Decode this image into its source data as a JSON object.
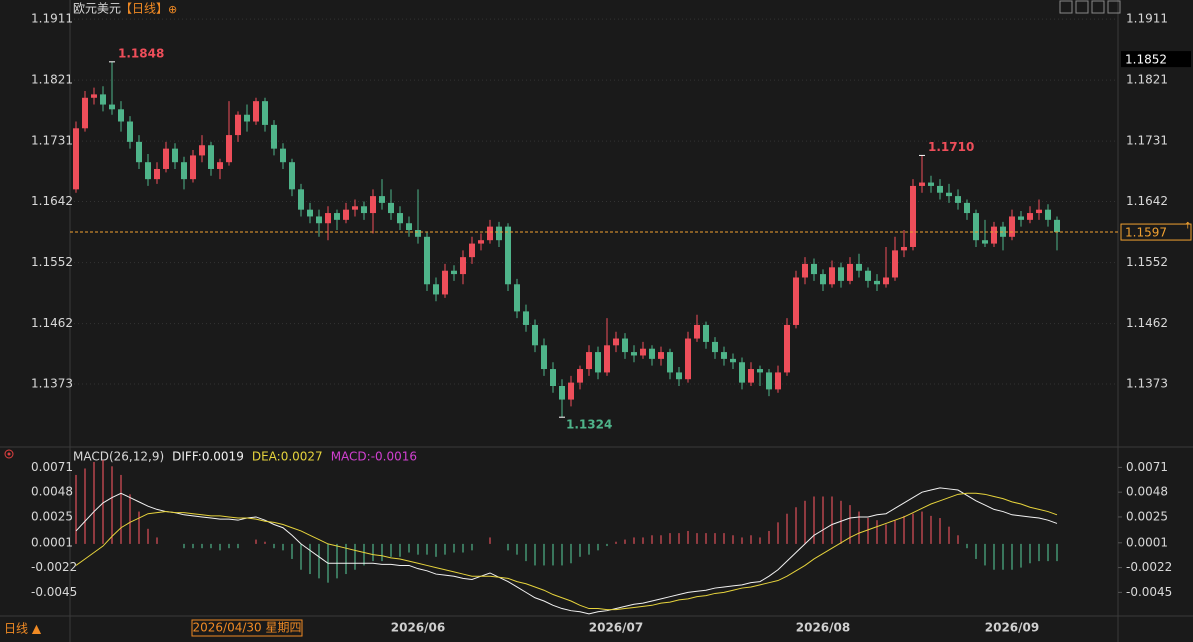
{
  "header": {
    "symbol": "欧元美元",
    "period": "【日线】",
    "period_icon": "⊕",
    "footer_period": "日线 ▲"
  },
  "chart_data": [
    {
      "type": "candlestick",
      "categories": [
        null,
        null,
        null,
        null,
        null,
        null,
        null,
        null,
        null,
        null,
        null,
        null,
        null,
        null,
        null,
        null,
        null,
        null,
        null,
        null,
        null,
        null,
        null,
        null,
        null,
        null,
        null,
        null,
        null,
        null,
        null,
        null,
        null,
        null,
        null,
        null,
        null,
        null,
        "2026/06",
        null,
        null,
        null,
        null,
        null,
        null,
        null,
        null,
        null,
        null,
        null,
        null,
        null,
        null,
        null,
        null,
        null,
        null,
        null,
        null,
        null,
        "2026/07",
        null,
        null,
        null,
        null,
        null,
        null,
        null,
        null,
        null,
        null,
        null,
        null,
        null,
        null,
        null,
        null,
        null,
        null,
        null,
        null,
        null,
        null,
        "2026/08",
        null,
        null,
        null,
        null,
        null,
        null,
        null,
        null,
        null,
        null,
        null,
        null,
        null,
        null,
        null,
        null,
        null,
        null,
        null,
        null,
        "2026/09",
        null,
        null,
        null,
        null,
        null
      ],
      "ohlc": [
        [
          1.166,
          1.176,
          1.1655,
          1.175
        ],
        [
          1.175,
          1.1805,
          1.1745,
          1.1795
        ],
        [
          1.1795,
          1.181,
          1.1785,
          1.18
        ],
        [
          1.18,
          1.1812,
          1.1775,
          1.1785
        ],
        [
          1.1785,
          1.1848,
          1.177,
          1.1778
        ],
        [
          1.1778,
          1.179,
          1.1745,
          1.176
        ],
        [
          1.176,
          1.1768,
          1.172,
          1.173
        ],
        [
          1.173,
          1.174,
          1.169,
          1.17
        ],
        [
          1.17,
          1.1712,
          1.1665,
          1.1675
        ],
        [
          1.1675,
          1.17,
          1.1668,
          1.169
        ],
        [
          1.169,
          1.173,
          1.1685,
          1.172
        ],
        [
          1.172,
          1.1728,
          1.169,
          1.17
        ],
        [
          1.17,
          1.1708,
          1.166,
          1.1675
        ],
        [
          1.1675,
          1.1718,
          1.167,
          1.171
        ],
        [
          1.171,
          1.174,
          1.17,
          1.1725
        ],
        [
          1.1725,
          1.173,
          1.168,
          1.169
        ],
        [
          1.169,
          1.1705,
          1.1675,
          1.17
        ],
        [
          1.17,
          1.179,
          1.1695,
          1.174
        ],
        [
          1.174,
          1.1775,
          1.173,
          1.177
        ],
        [
          1.177,
          1.1785,
          1.1745,
          1.176
        ],
        [
          1.176,
          1.1795,
          1.1755,
          1.179
        ],
        [
          1.179,
          1.1795,
          1.1745,
          1.1755
        ],
        [
          1.1755,
          1.1762,
          1.171,
          1.172
        ],
        [
          1.172,
          1.1728,
          1.169,
          1.17
        ],
        [
          1.17,
          1.1705,
          1.165,
          1.166
        ],
        [
          1.166,
          1.1668,
          1.162,
          1.163
        ],
        [
          1.163,
          1.164,
          1.161,
          1.162
        ],
        [
          1.162,
          1.163,
          1.159,
          1.161
        ],
        [
          1.161,
          1.1635,
          1.1585,
          1.1625
        ],
        [
          1.1625,
          1.163,
          1.16,
          1.1615
        ],
        [
          1.1615,
          1.164,
          1.161,
          1.163
        ],
        [
          1.163,
          1.1645,
          1.162,
          1.1635
        ],
        [
          1.1635,
          1.1642,
          1.1615,
          1.1625
        ],
        [
          1.1625,
          1.166,
          1.1595,
          1.165
        ],
        [
          1.165,
          1.1675,
          1.163,
          1.164
        ],
        [
          1.164,
          1.166,
          1.1615,
          1.1625
        ],
        [
          1.1625,
          1.1635,
          1.16,
          1.161
        ],
        [
          1.161,
          1.162,
          1.159,
          1.16
        ],
        [
          1.16,
          1.166,
          1.158,
          1.159
        ],
        [
          1.159,
          1.1598,
          1.151,
          1.152
        ],
        [
          1.152,
          1.153,
          1.1495,
          1.1505
        ],
        [
          1.1505,
          1.155,
          1.15,
          1.154
        ],
        [
          1.154,
          1.1548,
          1.1525,
          1.1535
        ],
        [
          1.1535,
          1.157,
          1.152,
          1.156
        ],
        [
          1.156,
          1.159,
          1.155,
          1.158
        ],
        [
          1.158,
          1.1595,
          1.157,
          1.1585
        ],
        [
          1.1585,
          1.1615,
          1.158,
          1.1605
        ],
        [
          1.1605,
          1.1612,
          1.1575,
          1.1585
        ],
        [
          1.1605,
          1.161,
          1.151,
          1.152
        ],
        [
          1.152,
          1.1528,
          1.147,
          1.148
        ],
        [
          1.148,
          1.149,
          1.145,
          1.146
        ],
        [
          1.146,
          1.1468,
          1.142,
          1.143
        ],
        [
          1.143,
          1.144,
          1.1385,
          1.1395
        ],
        [
          1.1395,
          1.1405,
          1.136,
          1.137
        ],
        [
          1.137,
          1.138,
          1.1324,
          1.135
        ],
        [
          1.135,
          1.1385,
          1.134,
          1.1375
        ],
        [
          1.1375,
          1.14,
          1.1365,
          1.1395
        ],
        [
          1.1395,
          1.143,
          1.1385,
          1.142
        ],
        [
          1.142,
          1.1428,
          1.138,
          1.139
        ],
        [
          1.139,
          1.147,
          1.1385,
          1.143
        ],
        [
          1.143,
          1.145,
          1.142,
          1.144
        ],
        [
          1.144,
          1.1448,
          1.141,
          1.142
        ],
        [
          1.142,
          1.143,
          1.1405,
          1.1415
        ],
        [
          1.1415,
          1.1435,
          1.141,
          1.1425
        ],
        [
          1.1425,
          1.143,
          1.14,
          1.141
        ],
        [
          1.141,
          1.1428,
          1.14,
          1.142
        ],
        [
          1.142,
          1.1425,
          1.138,
          1.139
        ],
        [
          1.139,
          1.1398,
          1.137,
          1.138
        ],
        [
          1.138,
          1.145,
          1.1375,
          1.144
        ],
        [
          1.144,
          1.1475,
          1.1435,
          1.146
        ],
        [
          1.146,
          1.1465,
          1.1425,
          1.1435
        ],
        [
          1.1435,
          1.1442,
          1.141,
          1.142
        ],
        [
          1.142,
          1.1428,
          1.14,
          1.141
        ],
        [
          1.141,
          1.1418,
          1.1395,
          1.1405
        ],
        [
          1.1405,
          1.1412,
          1.1365,
          1.1375
        ],
        [
          1.1375,
          1.1405,
          1.137,
          1.1395
        ],
        [
          1.1395,
          1.14,
          1.137,
          1.139
        ],
        [
          1.139,
          1.1395,
          1.1355,
          1.1365
        ],
        [
          1.1365,
          1.14,
          1.136,
          1.139
        ],
        [
          1.139,
          1.147,
          1.1385,
          1.146
        ],
        [
          1.146,
          1.154,
          1.1455,
          1.153
        ],
        [
          1.153,
          1.156,
          1.152,
          1.155
        ],
        [
          1.155,
          1.1558,
          1.1525,
          1.1535
        ],
        [
          1.1535,
          1.1542,
          1.151,
          1.152
        ],
        [
          1.152,
          1.1555,
          1.1515,
          1.1545
        ],
        [
          1.1545,
          1.1552,
          1.1515,
          1.1525
        ],
        [
          1.1525,
          1.156,
          1.152,
          1.155
        ],
        [
          1.155,
          1.1565,
          1.153,
          1.154
        ],
        [
          1.154,
          1.1545,
          1.1515,
          1.1525
        ],
        [
          1.1525,
          1.1535,
          1.151,
          1.152
        ],
        [
          1.152,
          1.1575,
          1.1515,
          1.153
        ],
        [
          1.153,
          1.159,
          1.1525,
          1.157
        ],
        [
          1.157,
          1.16,
          1.156,
          1.1575
        ],
        [
          1.1575,
          1.1675,
          1.157,
          1.1665
        ],
        [
          1.1665,
          1.171,
          1.1655,
          1.167
        ],
        [
          1.167,
          1.168,
          1.1655,
          1.1665
        ],
        [
          1.1665,
          1.1675,
          1.1645,
          1.1655
        ],
        [
          1.1655,
          1.1668,
          1.164,
          1.165
        ],
        [
          1.165,
          1.166,
          1.163,
          1.164
        ],
        [
          1.164,
          1.1645,
          1.1615,
          1.1625
        ],
        [
          1.1625,
          1.163,
          1.1575,
          1.1585
        ],
        [
          1.1585,
          1.1615,
          1.1575,
          1.158
        ],
        [
          1.158,
          1.1612,
          1.1575,
          1.1605
        ],
        [
          1.1605,
          1.1612,
          1.157,
          1.159
        ],
        [
          1.159,
          1.163,
          1.1585,
          1.162
        ],
        [
          1.162,
          1.1628,
          1.1605,
          1.1615
        ],
        [
          1.1615,
          1.1635,
          1.161,
          1.1625
        ],
        [
          1.1625,
          1.1645,
          1.1615,
          1.163
        ],
        [
          1.163,
          1.1638,
          1.1605,
          1.1615
        ],
        [
          1.1615,
          1.162,
          1.157,
          1.1597
        ]
      ],
      "up_color": "#ee4e5a",
      "down_color": "#4fb48a",
      "ylim": [
        1.1283,
        1.192
      ],
      "yticks": [
        1.1911,
        1.1821,
        1.1731,
        1.1642,
        1.1552,
        1.1462,
        1.1373
      ],
      "grid": true,
      "last_price": 1.1597,
      "last_price_color": "#f0a030",
      "cursor_price": 1.1852,
      "cursor_date_label": "2026/04/30 星期四",
      "high_annotations": [
        "1.1848",
        "1.1710"
      ],
      "low_annotations": [
        "1.1324"
      ]
    },
    {
      "type": "macd",
      "title": "MACD(26,12,9)",
      "series": [
        {
          "label": "DIFF:0.0019",
          "color": "#f2f2f2",
          "values": [
            0.0012,
            0.0021,
            0.003,
            0.0038,
            0.0043,
            0.0047,
            0.0043,
            0.0039,
            0.0035,
            0.0032,
            0.003,
            0.0029,
            0.0027,
            0.0026,
            0.0025,
            0.0024,
            0.0023,
            0.0023,
            0.0022,
            0.0024,
            0.0025,
            0.0022,
            0.0018,
            0.0015,
            0.0008,
            0.0,
            -0.0006,
            -0.0012,
            -0.0018,
            -0.0018,
            -0.0018,
            -0.0018,
            -0.0018,
            -0.0018,
            -0.0019,
            -0.0019,
            -0.002,
            -0.002,
            -0.0023,
            -0.0025,
            -0.0028,
            -0.0029,
            -0.003,
            -0.0032,
            -0.0033,
            -0.003,
            -0.0027,
            -0.0031,
            -0.0035,
            -0.004,
            -0.0045,
            -0.005,
            -0.0053,
            -0.0057,
            -0.006,
            -0.0062,
            -0.0063,
            -0.0065,
            -0.0063,
            -0.0062,
            -0.006,
            -0.0058,
            -0.0056,
            -0.0055,
            -0.0053,
            -0.0051,
            -0.0049,
            -0.0047,
            -0.0045,
            -0.0044,
            -0.0043,
            -0.0041,
            -0.004,
            -0.0039,
            -0.0038,
            -0.0036,
            -0.0035,
            -0.003,
            -0.0024,
            -0.0016,
            -0.0008,
            0.0,
            0.0008,
            0.0013,
            0.0018,
            0.0021,
            0.0024,
            0.0025,
            0.0025,
            0.0027,
            0.0028,
            0.0033,
            0.0038,
            0.0043,
            0.0048,
            0.005,
            0.0052,
            0.0051,
            0.005,
            0.0045,
            0.004,
            0.0036,
            0.0032,
            0.003,
            0.0027,
            0.0026,
            0.0025,
            0.0024,
            0.0022,
            0.0019
          ]
        },
        {
          "label": "DEA:0.0027",
          "color": "#e6d33c",
          "values": [
            -0.002,
            -0.0014,
            -0.0008,
            -0.0002,
            0.0007,
            0.0015,
            0.002,
            0.0024,
            0.0028,
            0.0029,
            0.003,
            0.0029,
            0.0029,
            0.0028,
            0.0027,
            0.0026,
            0.0026,
            0.0025,
            0.0024,
            0.0024,
            0.0023,
            0.0021,
            0.002,
            0.0018,
            0.0015,
            0.0012,
            0.0008,
            0.0004,
            0.0,
            -0.0002,
            -0.0004,
            -0.0006,
            -0.0008,
            -0.001,
            -0.0011,
            -0.0013,
            -0.0014,
            -0.0016,
            -0.0018,
            -0.002,
            -0.0022,
            -0.0024,
            -0.0026,
            -0.0028,
            -0.003,
            -0.003,
            -0.003,
            -0.0031,
            -0.0032,
            -0.0035,
            -0.0037,
            -0.004,
            -0.0043,
            -0.0047,
            -0.005,
            -0.0053,
            -0.0057,
            -0.006,
            -0.006,
            -0.0061,
            -0.0061,
            -0.006,
            -0.0059,
            -0.0058,
            -0.0057,
            -0.0055,
            -0.0054,
            -0.0052,
            -0.0051,
            -0.0049,
            -0.0048,
            -0.0046,
            -0.0045,
            -0.0043,
            -0.0041,
            -0.004,
            -0.0038,
            -0.0036,
            -0.0034,
            -0.003,
            -0.0025,
            -0.002,
            -0.0014,
            -0.0009,
            -0.0004,
            0.0001,
            0.0006,
            0.001,
            0.0013,
            0.0016,
            0.0019,
            0.0022,
            0.0025,
            0.0029,
            0.0033,
            0.0037,
            0.004,
            0.0043,
            0.0046,
            0.0047,
            0.0047,
            0.0046,
            0.0044,
            0.0042,
            0.0039,
            0.0037,
            0.0034,
            0.0032,
            0.003,
            0.0027
          ]
        }
      ],
      "histogram": {
        "label": "MACD:-0.0016",
        "label_color": "#d040d0",
        "up_color": "#e0505a",
        "down_color": "#4fb48a",
        "values": [
          0.0064,
          0.007,
          0.0076,
          0.008,
          0.0072,
          0.0064,
          0.0046,
          0.003,
          0.0014,
          0.0006,
          0.0,
          0.0,
          -0.0004,
          -0.0004,
          -0.0004,
          -0.0004,
          -0.0006,
          -0.0004,
          -0.0004,
          0.0,
          0.0004,
          0.0002,
          -0.0004,
          -0.0006,
          -0.0014,
          -0.0024,
          -0.0028,
          -0.0032,
          -0.0036,
          -0.0032,
          -0.0028,
          -0.0024,
          -0.002,
          -0.0016,
          -0.0016,
          -0.0012,
          -0.0012,
          -0.0008,
          -0.001,
          -0.001,
          -0.0012,
          -0.001,
          -0.0008,
          -0.0008,
          -0.0006,
          0.0,
          0.0006,
          0.0,
          -0.0006,
          -0.001,
          -0.0016,
          -0.002,
          -0.002,
          -0.002,
          -0.002,
          -0.0018,
          -0.0012,
          -0.001,
          -0.0006,
          -0.0002,
          0.0002,
          0.0004,
          0.0006,
          0.0006,
          0.0008,
          0.0008,
          0.001,
          0.001,
          0.0012,
          0.001,
          0.001,
          0.001,
          0.001,
          0.0008,
          0.0006,
          0.0008,
          0.0006,
          0.0012,
          0.002,
          0.0028,
          0.0034,
          0.004,
          0.0044,
          0.0044,
          0.0044,
          0.004,
          0.0036,
          0.003,
          0.0024,
          0.0022,
          0.0018,
          0.0022,
          0.0026,
          0.0028,
          0.003,
          0.0026,
          0.0024,
          0.0016,
          0.0008,
          -0.0004,
          -0.0014,
          -0.002,
          -0.0024,
          -0.0024,
          -0.0024,
          -0.0022,
          -0.0018,
          -0.0016,
          -0.0016,
          -0.0016
        ]
      },
      "ylim": [
        -0.0066,
        0.0076
      ],
      "yticks": [
        0.0071,
        0.0048,
        0.0025,
        0.0001,
        -0.0022,
        -0.0045
      ]
    }
  ]
}
